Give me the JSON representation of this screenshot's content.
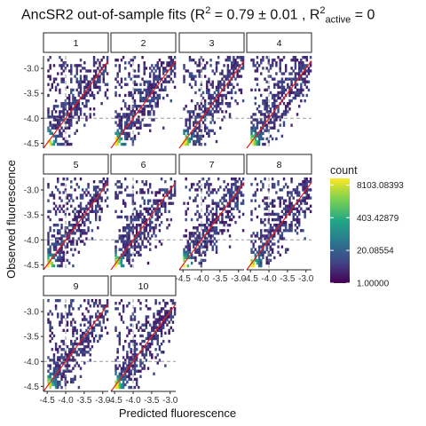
{
  "chart_data": {
    "type": "heatmap",
    "title": {
      "lead": "AncSR2 out-of-sample fits (R",
      "sup1": "2",
      "eq1": " = 0.79 ± 0.01 , R",
      "sup2": "2",
      "sub2": "active",
      "eq2": " = 0"
    },
    "xlabel": "Predicted fluorescence",
    "ylabel": "Observed fluorescence",
    "xlim": [
      -4.6,
      -2.85
    ],
    "ylim": [
      -4.6,
      -2.75
    ],
    "x_ticks": [
      -4.5,
      -4.0,
      -3.5,
      -3.0
    ],
    "x_tick_labels": [
      "-4.5",
      "-4.0",
      "-3.5",
      "-3.0"
    ],
    "y_ticks": [
      -4.5,
      -4.0,
      -3.5,
      -3.0
    ],
    "y_tick_labels": [
      "-4.5",
      "-4.0",
      "-3.5",
      "-3.0"
    ],
    "reference_lines": {
      "vertical_dashed_x": -4.0,
      "horizontal_dashed_y": -4.0,
      "diagonal": "y = x",
      "diagonal_color": "#e0201b"
    },
    "facets": [
      "1",
      "2",
      "3",
      "4",
      "5",
      "6",
      "7",
      "8",
      "9",
      "10"
    ],
    "legend": {
      "title": "count",
      "scale": "log",
      "labels": [
        "8103.08393",
        "403.42879",
        "20.08554",
        "1.00000"
      ],
      "values": [
        8103.08393,
        403.42879,
        20.08554,
        1.0
      ],
      "palette": [
        "#440154",
        "#414487",
        "#2a788e",
        "#22a884",
        "#7ad151",
        "#fde725"
      ]
    },
    "grid": false
  }
}
